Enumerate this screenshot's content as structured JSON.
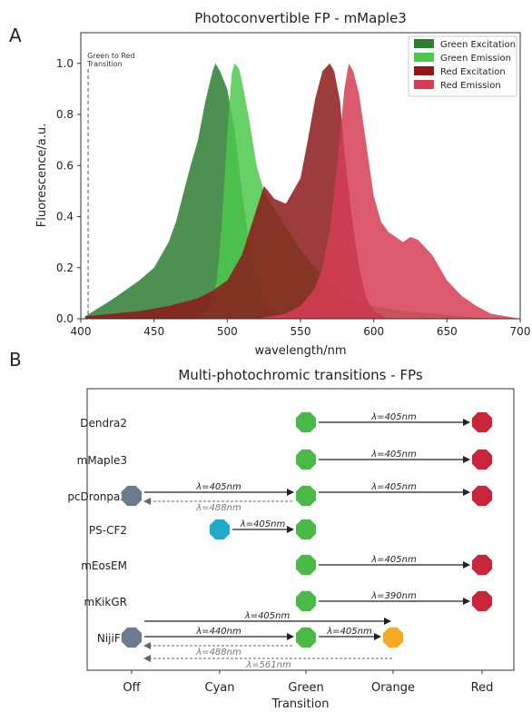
{
  "panel_a": {
    "letter": "A",
    "chart_data": {
      "type": "area",
      "title": "Photoconvertible FP - mMaple3",
      "xlabel": "wavelength/nm",
      "ylabel": "Fluorescence/a.u.",
      "xlim": [
        400,
        700
      ],
      "ylim": [
        0,
        1.12
      ],
      "xticks": [
        400,
        450,
        500,
        550,
        600,
        650,
        700
      ],
      "yticks": [
        0.0,
        0.2,
        0.4,
        0.6,
        0.8,
        1.0
      ],
      "legend_position": "top-right",
      "annotation": {
        "text_lines": [
          "Green to Red",
          "Transition"
        ],
        "x": 405
      },
      "series": [
        {
          "name": "Green Excitation",
          "color": "#2e7d32",
          "x": [
            403,
            420,
            430,
            440,
            450,
            455,
            460,
            465,
            470,
            475,
            480,
            485,
            490,
            492,
            495,
            500,
            505,
            510,
            515,
            520,
            525,
            530,
            540,
            550,
            560,
            570,
            580,
            590,
            600
          ],
          "y": [
            0.01,
            0.07,
            0.11,
            0.15,
            0.2,
            0.25,
            0.3,
            0.38,
            0.49,
            0.6,
            0.7,
            0.85,
            0.97,
            1.0,
            0.97,
            0.9,
            0.74,
            0.5,
            0.29,
            0.15,
            0.08,
            0.04,
            0.02,
            0.01,
            0.005,
            0.0,
            0.0,
            0.0,
            0.0
          ]
        },
        {
          "name": "Green Emission",
          "color": "#4cc94c",
          "x": [
            470,
            480,
            485,
            490,
            493,
            496,
            500,
            503,
            505,
            508,
            510,
            515,
            520,
            525,
            530,
            540,
            550,
            560,
            570,
            580,
            590,
            600,
            620,
            640,
            660,
            680,
            700
          ],
          "y": [
            0.0,
            0.01,
            0.03,
            0.08,
            0.15,
            0.35,
            0.72,
            0.96,
            1.0,
            0.98,
            0.93,
            0.78,
            0.6,
            0.5,
            0.45,
            0.36,
            0.27,
            0.2,
            0.14,
            0.1,
            0.07,
            0.05,
            0.03,
            0.02,
            0.01,
            0.0,
            0.0
          ]
        },
        {
          "name": "Red Excitation",
          "color": "#8b1a1a",
          "x": [
            403,
            440,
            460,
            480,
            490,
            500,
            510,
            520,
            525,
            528,
            532,
            540,
            550,
            555,
            560,
            565,
            570,
            573,
            577,
            580,
            585,
            590,
            595,
            600,
            610
          ],
          "y": [
            0.01,
            0.03,
            0.05,
            0.08,
            0.11,
            0.15,
            0.25,
            0.43,
            0.52,
            0.5,
            0.47,
            0.45,
            0.55,
            0.7,
            0.86,
            0.97,
            1.0,
            0.97,
            0.85,
            0.65,
            0.4,
            0.2,
            0.08,
            0.03,
            0.0
          ]
        },
        {
          "name": "Red Emission",
          "color": "#d63d55",
          "x": [
            520,
            540,
            550,
            560,
            565,
            570,
            575,
            580,
            583,
            586,
            590,
            595,
            600,
            605,
            610,
            615,
            620,
            625,
            630,
            640,
            650,
            660,
            670,
            680,
            690,
            700
          ],
          "y": [
            0.0,
            0.02,
            0.05,
            0.12,
            0.2,
            0.35,
            0.6,
            0.9,
            1.0,
            0.97,
            0.88,
            0.68,
            0.48,
            0.38,
            0.34,
            0.32,
            0.3,
            0.32,
            0.31,
            0.25,
            0.15,
            0.09,
            0.05,
            0.02,
            0.01,
            0.0
          ]
        }
      ]
    }
  },
  "panel_b": {
    "letter": "B",
    "chart_data": {
      "type": "diagram",
      "title": "Multi-photochromic transitions - FPs",
      "xlabel": "Transition",
      "states": [
        {
          "name": "Off",
          "color": "#6b7a8f"
        },
        {
          "name": "Cyan",
          "color": "#1eaac8"
        },
        {
          "name": "Green",
          "color": "#4cb848"
        },
        {
          "name": "Orange",
          "color": "#f7a823"
        },
        {
          "name": "Red",
          "color": "#c8243a"
        }
      ],
      "proteins": [
        {
          "name": "Dendra2",
          "states": [
            "Green",
            "Red"
          ],
          "transitions": [
            {
              "from": "Green",
              "to": "Red",
              "label": "λ=405nm",
              "dashed": false
            }
          ]
        },
        {
          "name": "mMaple3",
          "states": [
            "Green",
            "Red"
          ],
          "transitions": [
            {
              "from": "Green",
              "to": "Red",
              "label": "λ=405nm",
              "dashed": false
            }
          ]
        },
        {
          "name": "pcDronpa2",
          "states": [
            "Off",
            "Green",
            "Red"
          ],
          "transitions": [
            {
              "from": "Off",
              "to": "Green",
              "label": "λ=405nm",
              "dashed": false
            },
            {
              "from": "Green",
              "to": "Off",
              "label": "λ=488nm",
              "dashed": true
            },
            {
              "from": "Green",
              "to": "Red",
              "label": "λ=405nm",
              "dashed": false
            }
          ]
        },
        {
          "name": "PS-CF2",
          "states": [
            "Cyan",
            "Green"
          ],
          "transitions": [
            {
              "from": "Cyan",
              "to": "Green",
              "label": "λ=405nm",
              "dashed": false
            }
          ]
        },
        {
          "name": "mEosEM",
          "states": [
            "Green",
            "Red"
          ],
          "transitions": [
            {
              "from": "Green",
              "to": "Red",
              "label": "λ=405nm",
              "dashed": false
            }
          ]
        },
        {
          "name": "mKikGR",
          "states": [
            "Green",
            "Red"
          ],
          "transitions": [
            {
              "from": "Green",
              "to": "Red",
              "label": "λ=390nm",
              "dashed": false
            }
          ]
        },
        {
          "name": "NijiFP",
          "states": [
            "Off",
            "Green",
            "Orange"
          ],
          "transitions": [
            {
              "from": "Off",
              "to": "Orange",
              "label": "λ=405nm",
              "dashed": false
            },
            {
              "from": "Off",
              "to": "Green",
              "label": "λ=440nm",
              "dashed": false
            },
            {
              "from": "Green",
              "to": "Orange",
              "label": "λ=405nm",
              "dashed": false
            },
            {
              "from": "Green",
              "to": "Off",
              "label": "λ=488nm",
              "dashed": true
            },
            {
              "from": "Orange",
              "to": "Off",
              "label": "λ=561nm",
              "dashed": true
            }
          ]
        }
      ]
    }
  }
}
